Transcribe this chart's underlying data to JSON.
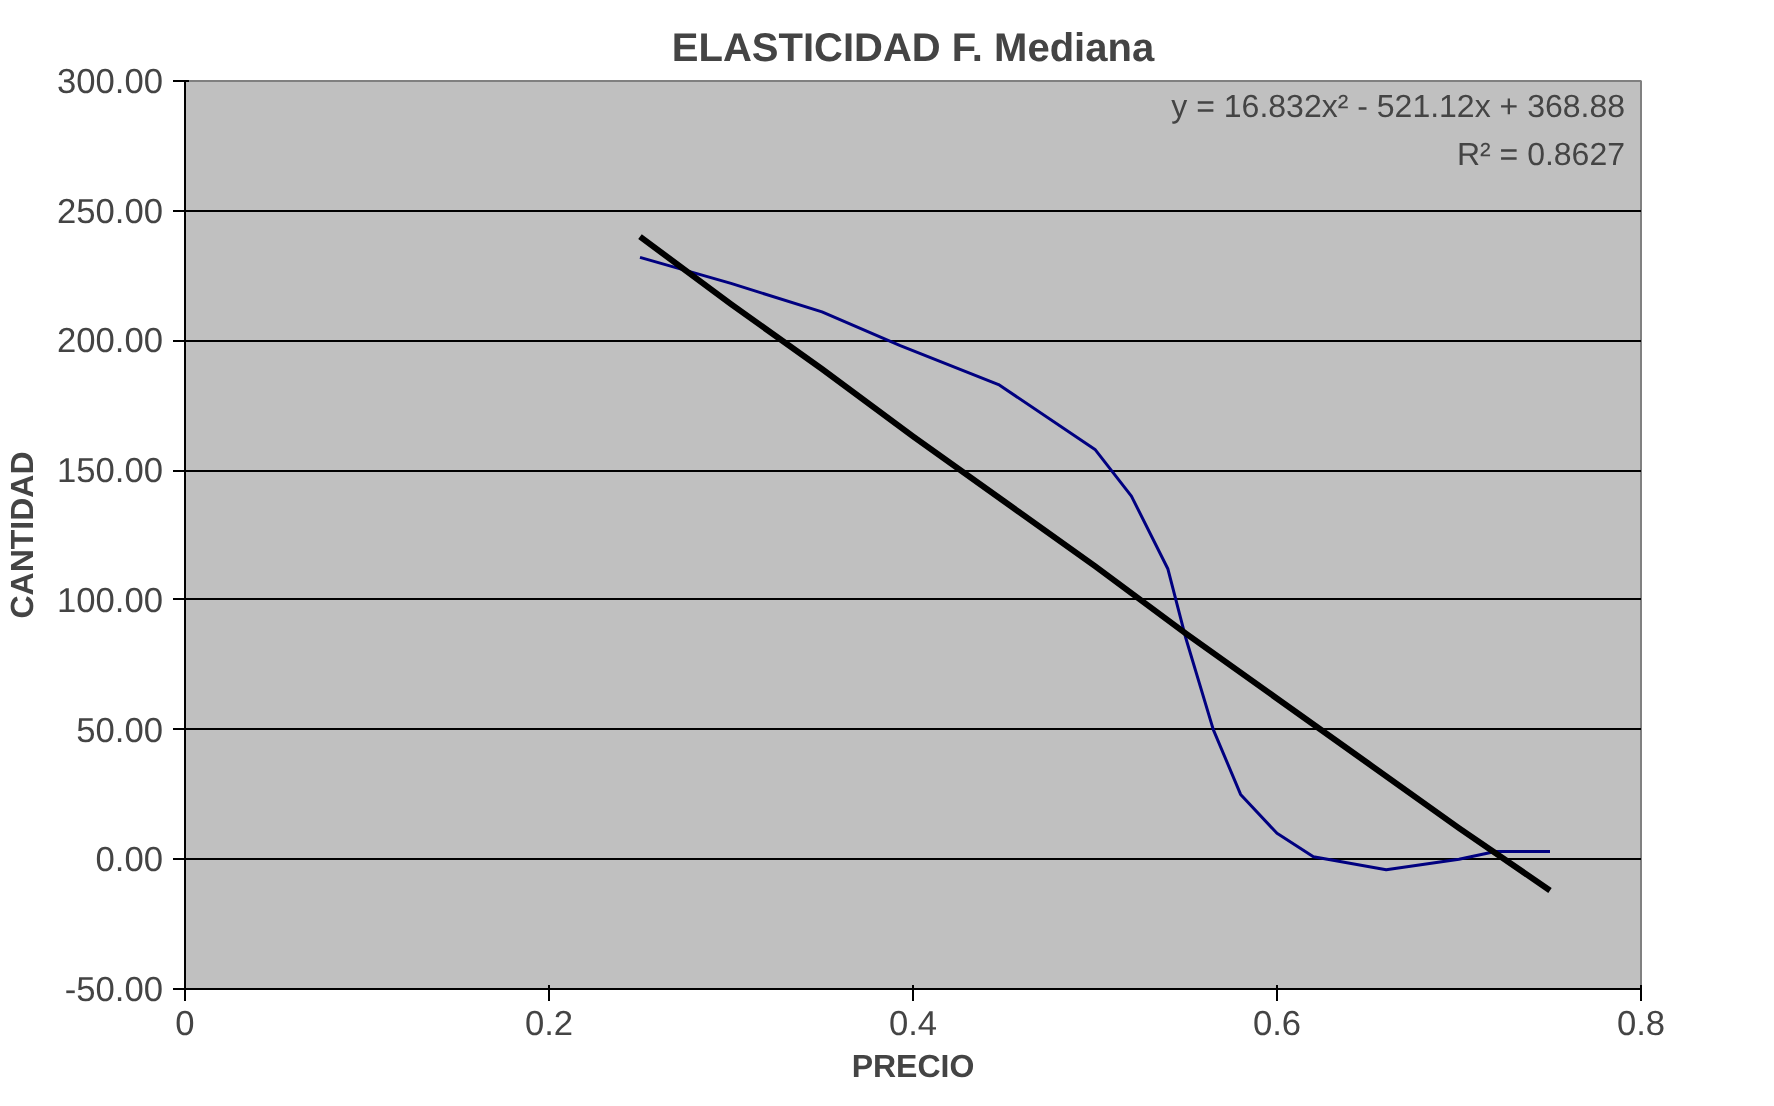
{
  "chart_data": {
    "type": "line",
    "title": "ELASTICIDAD F. Mediana",
    "xlabel": "PRECIO",
    "ylabel": "CANTIDAD",
    "xlim": [
      0,
      0.8
    ],
    "xticks": [
      {
        "value": 0,
        "label": "0"
      },
      0.2,
      0.4,
      0.6,
      0.8
    ],
    "ylim": [
      -50,
      300
    ],
    "yticks": [
      {
        "value": -50,
        "label": "-50.00"
      },
      {
        "value": 0,
        "label": "0.00"
      },
      {
        "value": 50,
        "label": "50.00"
      },
      {
        "value": 100,
        "label": "100.00"
      },
      {
        "value": 150,
        "label": "150.00"
      },
      {
        "value": 200,
        "label": "200.00"
      },
      {
        "value": 250,
        "label": "250.00"
      },
      {
        "value": 300,
        "label": "300.00"
      }
    ],
    "grid": "y",
    "marker": "none",
    "line_style": "solid",
    "series": [
      {
        "color": "#000080",
        "x": [
          0.25,
          0.3,
          0.35,
          0.393,
          0.447,
          0.5,
          0.52,
          0.54,
          0.55,
          0.565,
          0.58,
          0.6,
          0.62,
          0.66,
          0.7,
          0.72,
          0.75
        ],
        "values": [
          232,
          222,
          211,
          198,
          183,
          158,
          140,
          112,
          85,
          50,
          25,
          10,
          1,
          -4,
          0,
          3,
          3
        ]
      },
      {
        "color": "#000000",
        "x": [
          0.25,
          0.3,
          0.35,
          0.4,
          0.45,
          0.5,
          0.55,
          0.6,
          0.65,
          0.7,
          0.75
        ],
        "values": [
          240,
          214,
          189,
          163,
          138,
          113,
          87,
          62,
          37,
          12,
          -12
        ]
      }
    ],
    "annotations": [
      "y = 16.832x² - 521.12x + 368.88",
      "R² = 0.8627"
    ]
  }
}
